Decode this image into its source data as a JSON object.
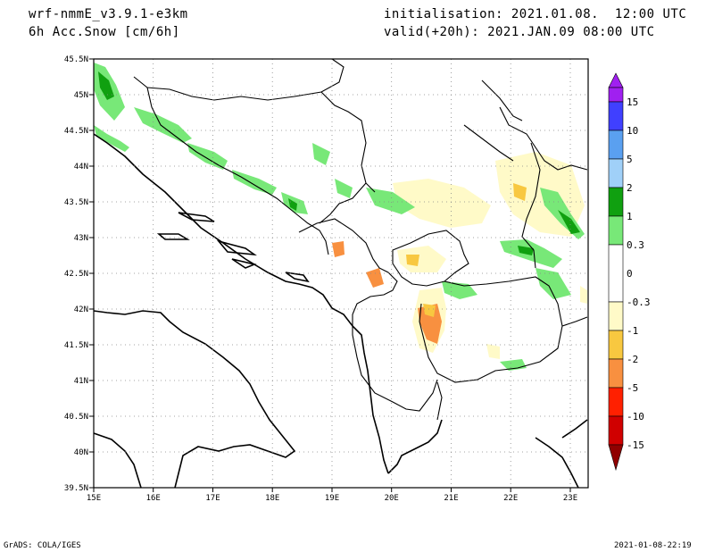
{
  "header": {
    "model": "wrf-nmmE_v3.9.1-e3km",
    "field": "6h Acc.Snow [cm/6h]",
    "init": "initialisation: 2021.01.08.  12:00 UTC",
    "valid": "valid(+20h): 2021.JAN.09 08:00 UTC"
  },
  "map": {
    "lat_labels": [
      "45.5N",
      "45N",
      "44.5N",
      "44N",
      "43.5N",
      "43N",
      "42.5N",
      "42N",
      "41.5N",
      "41N",
      "40.5N",
      "40N",
      "39.5N"
    ],
    "lon_labels": [
      "15E",
      "16E",
      "17E",
      "18E",
      "19E",
      "20E",
      "21E",
      "22E",
      "23E"
    ],
    "lat_range": [
      39.5,
      45.5
    ],
    "lon_range": [
      15,
      23.3
    ]
  },
  "colorbar": {
    "labels": [
      "15",
      "10",
      "5",
      "2",
      "1",
      "0.3",
      "0",
      "-0.3",
      "-1",
      "-2",
      "-5",
      "-10",
      "-15"
    ],
    "colors": [
      "#a020f0",
      "#4040ff",
      "#5aa0f0",
      "#a0d0f8",
      "#10a010",
      "#78e878",
      "#ffffff",
      "#fffac8",
      "#f8c840",
      "#f89040",
      "#ff2000",
      "#d00000",
      "#900000"
    ]
  },
  "footer": {
    "left": "GrADS: COLA/IGES",
    "right": "2021-01-08-22:19"
  }
}
